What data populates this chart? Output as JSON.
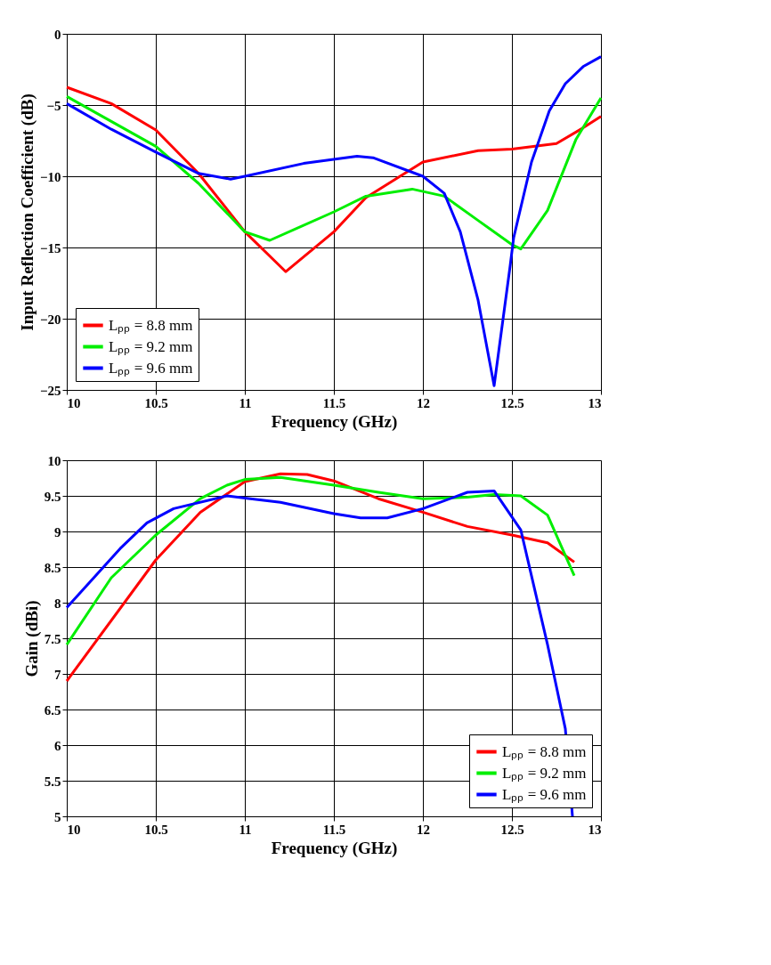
{
  "chart_data": [
    {
      "type": "line",
      "xlabel": "Frequency (GHz)",
      "ylabel": "Input Reflection Coefficient (dB)",
      "xlim": [
        10,
        13
      ],
      "ylim": [
        -25,
        0
      ],
      "xticks": [
        10,
        10.5,
        11,
        11.5,
        12,
        12.5,
        13
      ],
      "yticks": [
        -25,
        -20,
        -15,
        -10,
        -5,
        0
      ],
      "grid": true,
      "legend": "bottom left",
      "line_style": "solid",
      "marker": "none",
      "series": [
        {
          "name": "Lₚₚ = 8.8 mm",
          "color": "#ff0000",
          "x": [
            10,
            10.25,
            10.5,
            10.74,
            11.0,
            11.23,
            11.5,
            11.68,
            12.0,
            12.31,
            12.5,
            12.75,
            12.9,
            13
          ],
          "values": [
            -3.75,
            -4.9,
            -6.75,
            -9.8,
            -13.9,
            -16.7,
            -13.9,
            -11.5,
            -9.0,
            -8.2,
            -8.1,
            -7.7,
            -6.6,
            -5.8
          ]
        },
        {
          "name": "Lₚₚ = 9.2 mm",
          "color": "#00ee00",
          "x": [
            10,
            10.5,
            10.74,
            11.0,
            11.14,
            11.5,
            11.68,
            11.94,
            12.12,
            12.31,
            12.5,
            12.55,
            12.7,
            12.86,
            13
          ],
          "values": [
            -4.4,
            -7.9,
            -10.5,
            -13.9,
            -14.5,
            -12.5,
            -11.4,
            -10.9,
            -11.4,
            -13.1,
            -14.8,
            -15.1,
            -12.4,
            -7.4,
            -4.5
          ]
        },
        {
          "name": "Lₚₚ = 9.6 mm",
          "color": "#0000ff",
          "x": [
            10,
            10.25,
            10.5,
            10.74,
            10.92,
            11.0,
            11.33,
            11.63,
            11.72,
            12.0,
            12.12,
            12.21,
            12.31,
            12.4,
            12.49,
            12.51,
            12.61,
            12.71,
            12.8,
            12.9,
            13
          ],
          "values": [
            -4.9,
            -6.7,
            -8.3,
            -9.8,
            -10.2,
            -10.0,
            -9.1,
            -8.6,
            -8.7,
            -10.0,
            -11.2,
            -13.9,
            -18.7,
            -24.7,
            -16.3,
            -14.3,
            -9.0,
            -5.4,
            -3.5,
            -2.3,
            -1.6
          ]
        }
      ]
    },
    {
      "type": "line",
      "xlabel": "Frequency (GHz)",
      "ylabel": "Gain (dBi)",
      "xlim": [
        10,
        13
      ],
      "ylim": [
        5,
        10
      ],
      "xticks": [
        10,
        10.5,
        11,
        11.5,
        12,
        12.5,
        13
      ],
      "yticks": [
        5,
        5.5,
        6,
        6.5,
        7,
        7.5,
        8,
        8.5,
        9,
        9.5,
        10
      ],
      "grid": true,
      "legend": "bottom right",
      "line_style": "solid",
      "marker": "none",
      "series": [
        {
          "name": "Lₚₚ = 8.8 mm",
          "color": "#ff0000",
          "x": [
            10,
            10.5,
            10.75,
            11.0,
            11.2,
            11.35,
            11.5,
            11.75,
            12.0,
            12.25,
            12.5,
            12.7,
            12.85
          ],
          "values": [
            6.9,
            8.6,
            9.27,
            9.7,
            9.81,
            9.8,
            9.71,
            9.46,
            9.27,
            9.07,
            8.95,
            8.84,
            8.57
          ]
        },
        {
          "name": "Lₚₚ = 9.2 mm",
          "color": "#00ee00",
          "x": [
            10,
            10.25,
            10.5,
            10.75,
            10.9,
            11.0,
            11.2,
            11.5,
            11.75,
            12.0,
            12.25,
            12.4,
            12.55,
            12.7,
            12.85
          ],
          "values": [
            7.41,
            8.35,
            8.95,
            9.46,
            9.65,
            9.73,
            9.76,
            9.65,
            9.55,
            9.46,
            9.48,
            9.52,
            9.5,
            9.23,
            8.38
          ]
        },
        {
          "name": "Lₚₚ = 9.6 mm",
          "color": "#0000ff",
          "x": [
            10,
            10.3,
            10.45,
            10.6,
            10.9,
            11.0,
            11.2,
            11.5,
            11.65,
            11.8,
            12.0,
            12.25,
            12.4,
            12.55,
            12.7,
            12.8,
            12.84
          ],
          "values": [
            7.93,
            8.76,
            9.12,
            9.32,
            9.5,
            9.47,
            9.41,
            9.25,
            9.19,
            9.19,
            9.32,
            9.55,
            9.57,
            9.02,
            7.41,
            6.23,
            5.0
          ]
        }
      ]
    }
  ]
}
